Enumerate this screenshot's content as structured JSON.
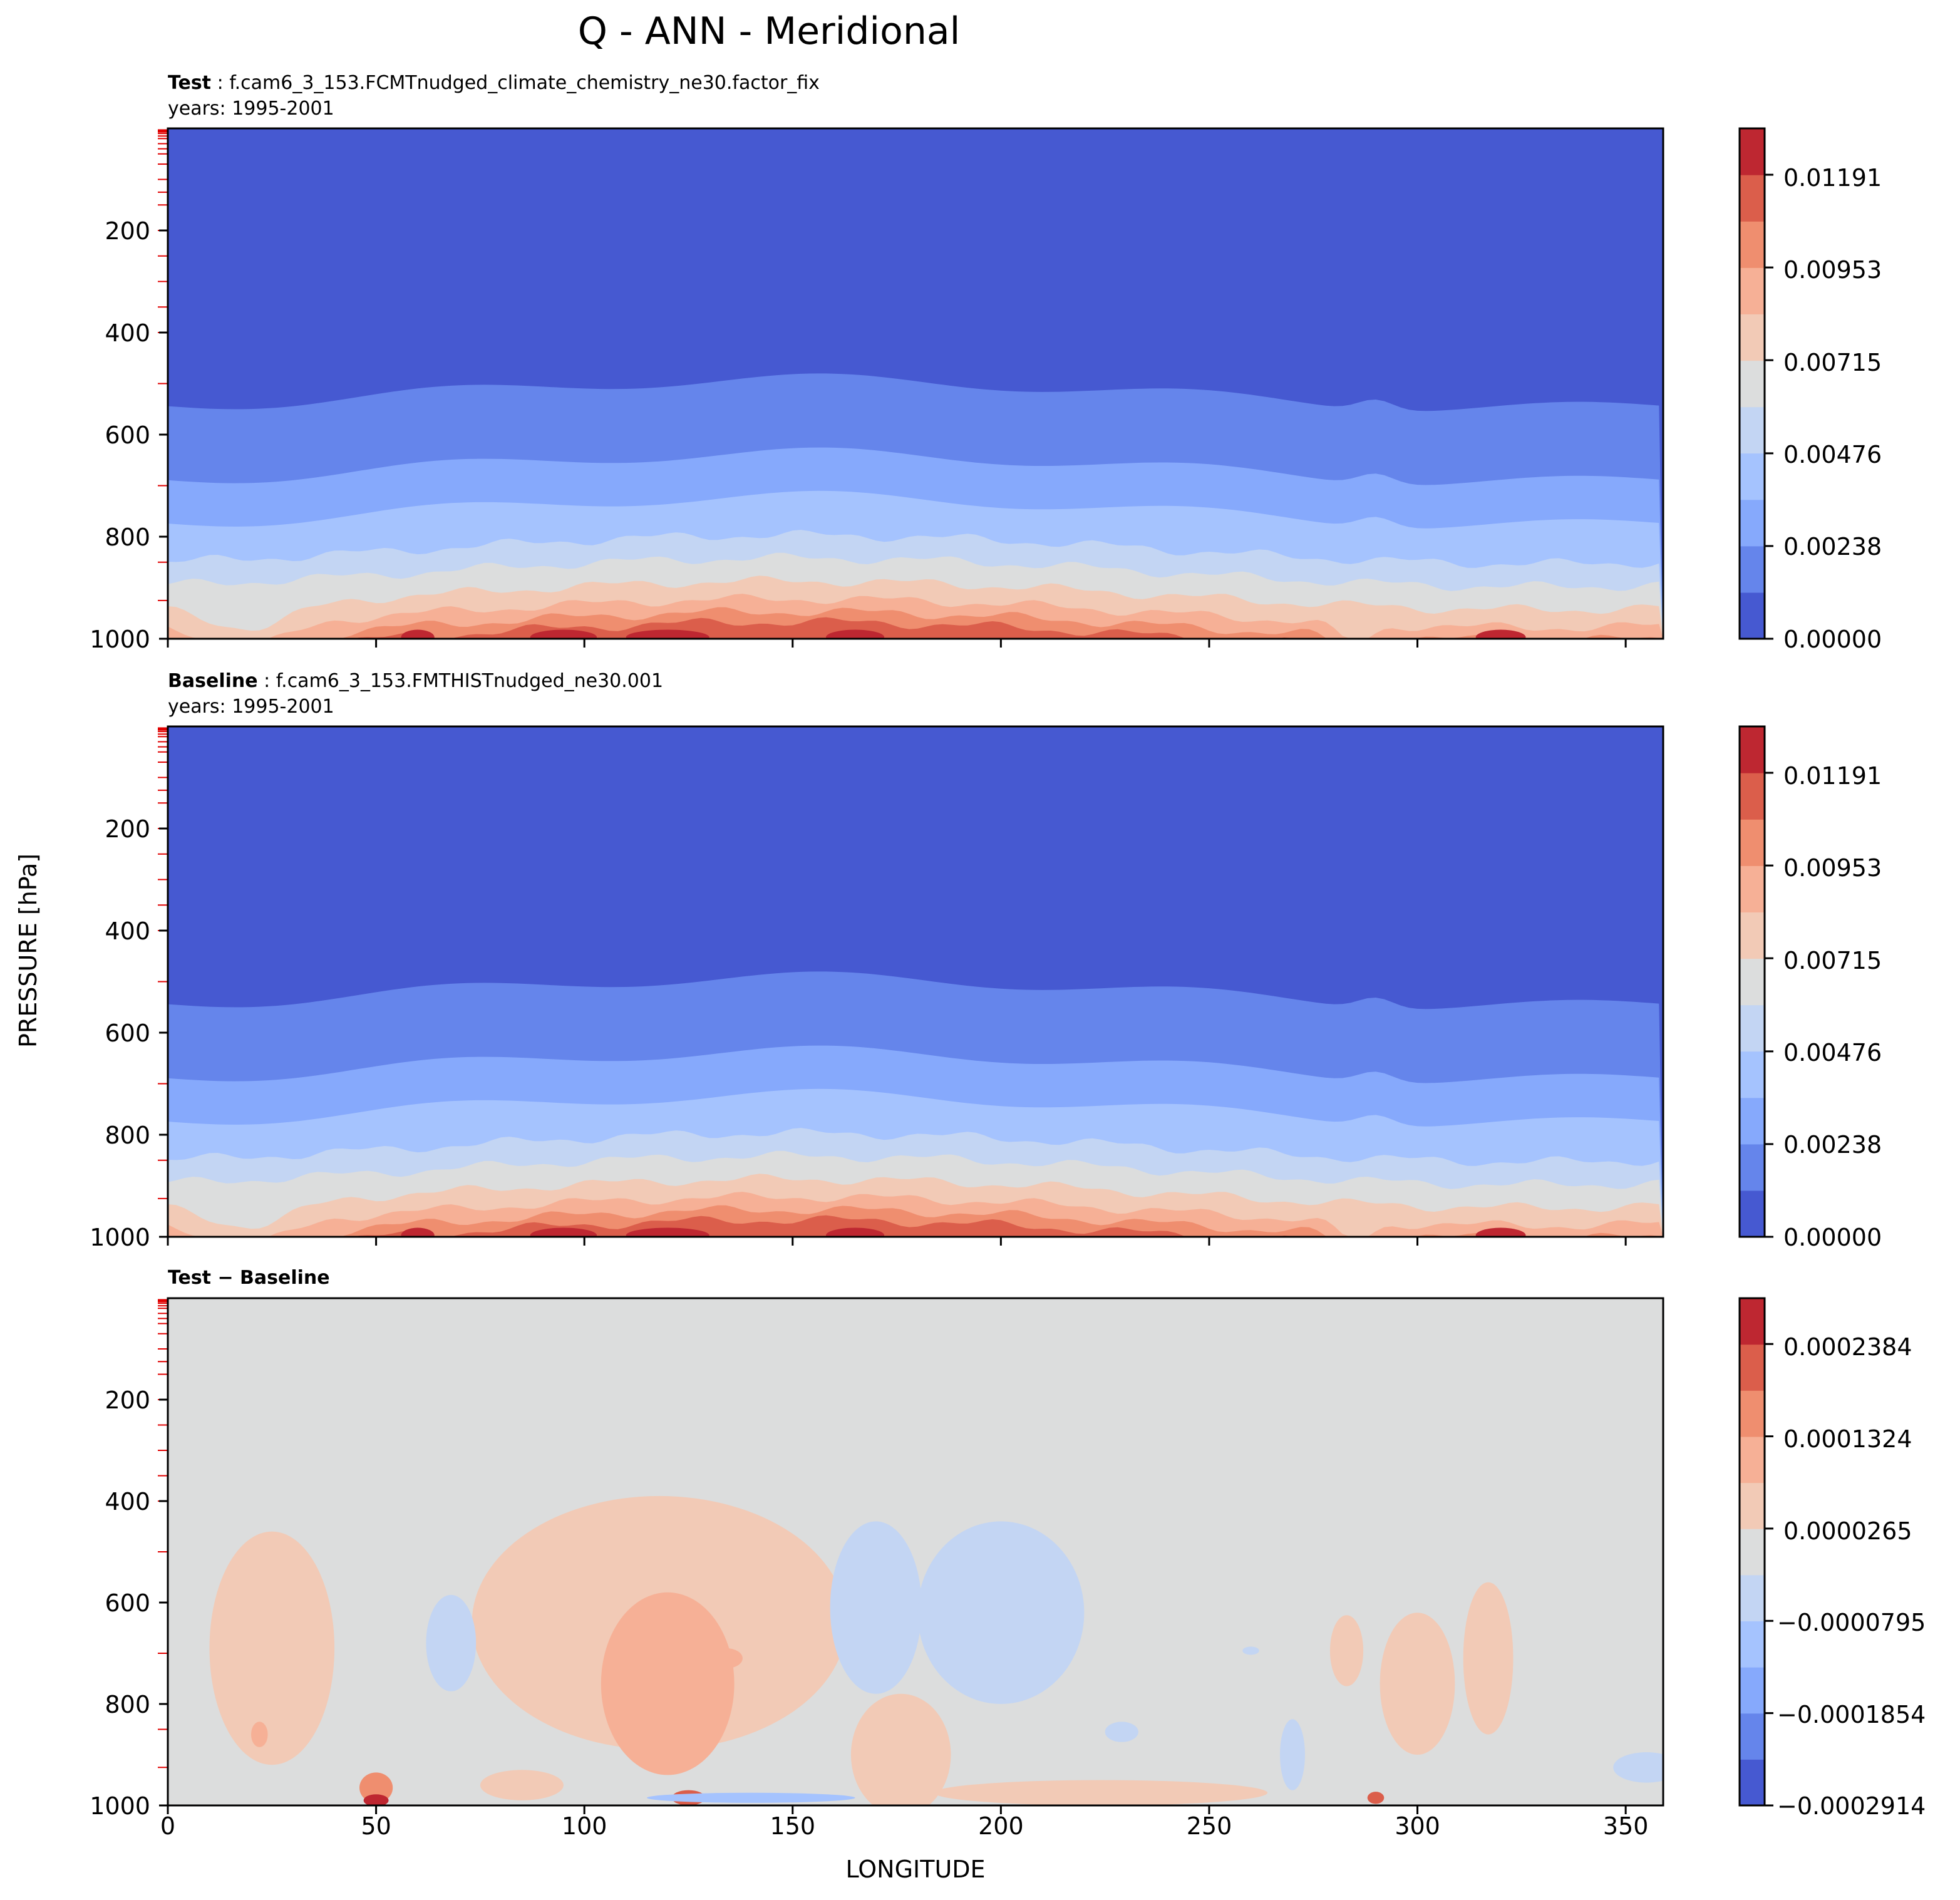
{
  "chart_data": {
    "type": "contour",
    "title": "Q - ANN - Meridional",
    "xlabel": "LONGITUDE",
    "ylabel": "PRESSURE [hPa]",
    "xlim": [
      0,
      359
    ],
    "ylim": [
      1000,
      0
    ],
    "x_ticks": [
      "0",
      "50",
      "100",
      "150",
      "200",
      "250",
      "300",
      "350"
    ],
    "y_ticks": [
      "200",
      "400",
      "600",
      "800",
      "1000"
    ],
    "panels": [
      {
        "name": "test",
        "label_bold": "Test",
        "label_rest": " : f.cam6_3_153.FCMTnudged_climate_chemistry_ne30.factor_fix",
        "years": "years: 1995-2001",
        "colorbar": {
          "min": 0.0,
          "max": 0.0131,
          "levels": 11,
          "tick_labels": [
            "0.01191",
            "0.00953",
            "0.00715",
            "0.00476",
            "0.00238",
            "0.00000"
          ],
          "tick_values": [
            0.01191,
            0.00953,
            0.00715,
            0.00476,
            0.00238,
            0.0
          ]
        }
      },
      {
        "name": "baseline",
        "label_bold": "Baseline",
        "label_rest": " : f.cam6_3_153.FMTHISTnudged_ne30.001",
        "years": "years: 1995-2001",
        "colorbar": {
          "min": 0.0,
          "max": 0.0131,
          "levels": 11,
          "tick_labels": [
            "0.01191",
            "0.00953",
            "0.00715",
            "0.00476",
            "0.00238",
            "0.00000"
          ],
          "tick_values": [
            0.01191,
            0.00953,
            0.00715,
            0.00476,
            0.00238,
            0.0
          ]
        }
      },
      {
        "name": "difference",
        "label_bold": "Test − Baseline",
        "label_rest": "",
        "years": "",
        "colorbar": {
          "min": -0.0002914,
          "max": 0.000291,
          "levels": 11,
          "tick_labels": [
            "0.0002384",
            "0.0001324",
            "0.0000265",
            "−0.0000795",
            "−0.0001854",
            "−0.0002914"
          ],
          "tick_values": [
            0.0002384,
            0.0001324,
            2.65e-05,
            -7.95e-05,
            -0.0001854,
            -0.0002914
          ]
        }
      }
    ],
    "mean_band_pressures_hPa_test": [
      520,
      665,
      750,
      825,
      870,
      915,
      950,
      975,
      995
    ],
    "model_level_pressures_hPa": [
      3,
      5,
      7,
      10,
      15,
      20,
      30,
      40,
      50,
      70,
      100,
      125,
      150,
      200,
      250,
      300,
      350,
      400,
      500,
      700,
      850,
      925
    ]
  },
  "colors": {
    "sequential": [
      "#4659d1",
      "#6585eb",
      "#86a9fc",
      "#a5c3fe",
      "#c3d5f3",
      "#dcdddd",
      "#f2cab6",
      "#f6b096",
      "#ef8e6f",
      "#db5e4b",
      "#be2731"
    ],
    "diverging": [
      "#4659d1",
      "#6585eb",
      "#86a9fc",
      "#a5c3fe",
      "#c3d5f3",
      "#dcdddd",
      "#f2cab6",
      "#f6b096",
      "#ef8e6f",
      "#db5e4b",
      "#be2731"
    ],
    "tick_red": "#e00000"
  }
}
